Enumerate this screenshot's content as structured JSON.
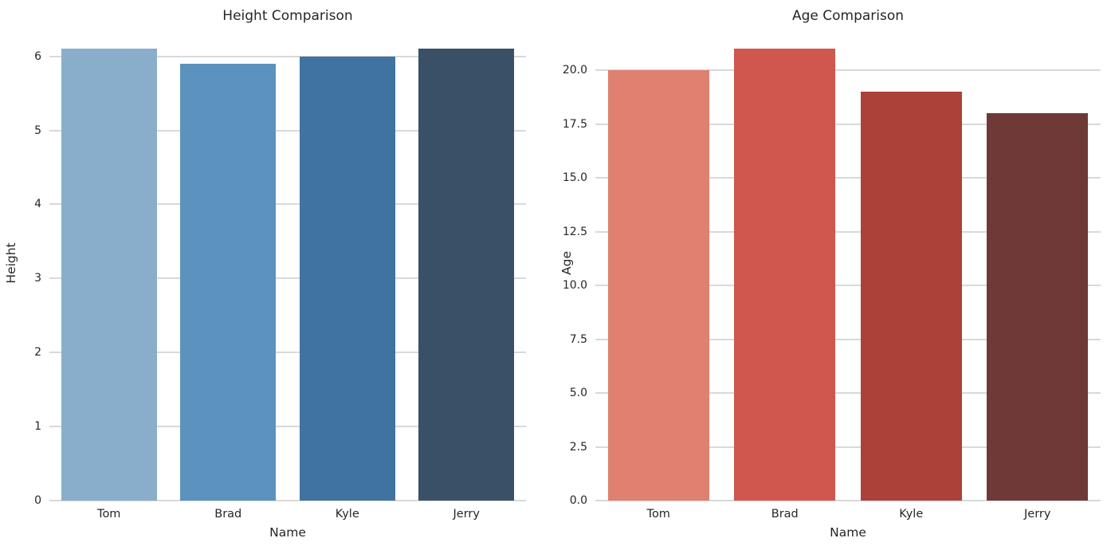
{
  "figure": {
    "background_color": "#ffffff",
    "text_color": "#262626",
    "grid_color": "#d9d9d9"
  },
  "chart_data": [
    {
      "type": "bar",
      "title": "Height Comparison",
      "xlabel": "Name",
      "ylabel": "Height",
      "categories": [
        "Tom",
        "Brad",
        "Kyle",
        "Jerry"
      ],
      "values": [
        6.1,
        5.9,
        6.0,
        6.1
      ],
      "bar_colors": [
        "#88aecb",
        "#5c92be",
        "#40739f",
        "#3a5066"
      ],
      "yticks": [
        0,
        1,
        2,
        3,
        4,
        5,
        6
      ],
      "ytick_labels": [
        "0",
        "1",
        "2",
        "3",
        "4",
        "5",
        "6"
      ],
      "ylim": [
        0,
        6.405
      ],
      "grid": true,
      "legend": false,
      "bar_width_fraction": 0.8
    },
    {
      "type": "bar",
      "title": "Age Comparison",
      "xlabel": "Name",
      "ylabel": "Age",
      "categories": [
        "Tom",
        "Brad",
        "Kyle",
        "Jerry"
      ],
      "values": [
        20,
        21,
        19,
        18
      ],
      "bar_colors": [
        "#df8070",
        "#cf574d",
        "#ab4138",
        "#6f3937"
      ],
      "yticks": [
        0,
        2.5,
        5,
        7.5,
        10,
        12.5,
        15,
        17.5,
        20
      ],
      "ytick_labels": [
        "0.0",
        "2.5",
        "5.0",
        "7.5",
        "10.0",
        "12.5",
        "15.0",
        "17.5",
        "20.0"
      ],
      "ylim": [
        0,
        22.05
      ],
      "grid": true,
      "legend": false,
      "bar_width_fraction": 0.8
    }
  ]
}
